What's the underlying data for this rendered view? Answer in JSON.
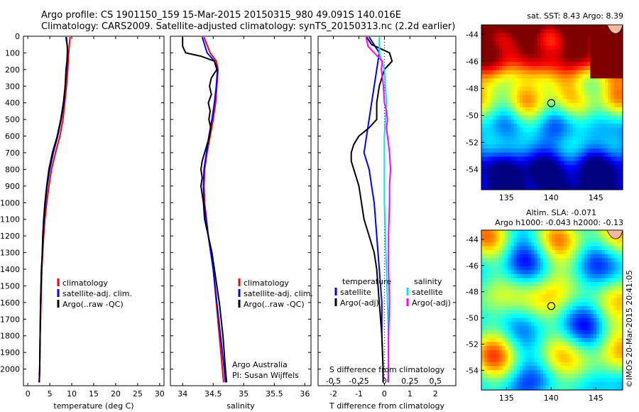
{
  "header": {
    "line1": "Argo profile: CS 1901150_159 15-Mar-2015 20150315_980 49.091S 140.016E",
    "line2": "Climatology: CARS2009. Satellite-adjusted climatology: synTS_20150313.nc (2.2d earlier)"
  },
  "credit": "©IMOS 20-Mar-2015 20:41:05",
  "colors": {
    "climatology": "#ff0000",
    "satellite": "#0000ff",
    "argo": "#000000",
    "sal_satellite": "#00e5ee",
    "sal_argo": "#ff00ff"
  },
  "chart_data": [
    {
      "type": "line",
      "panel": "temperature",
      "xlabel": "temperature (deg C)",
      "ylabel": "",
      "xlim": [
        -1,
        31
      ],
      "ylim": [
        2100,
        0
      ],
      "xticks": [
        "0",
        "5",
        "10",
        "15",
        "20",
        "25",
        "30"
      ],
      "xtick_values": [
        0,
        5,
        10,
        15,
        20,
        25,
        30
      ],
      "yticks": [
        "0",
        "100",
        "200",
        "300",
        "400",
        "500",
        "600",
        "700",
        "800",
        "900",
        "1000",
        "1100",
        "1200",
        "1300",
        "1400",
        "1500",
        "1600",
        "1700",
        "1800",
        "1900",
        "2000"
      ],
      "ytick_values": [
        0,
        100,
        200,
        300,
        400,
        500,
        600,
        700,
        800,
        900,
        1000,
        1100,
        1200,
        1300,
        1400,
        1500,
        1600,
        1700,
        1800,
        1900,
        2000
      ],
      "legend_position": "bottom-center",
      "legend": [
        "climatology",
        "satellite-adj. clim.",
        "Argo(..raw -QC)"
      ],
      "series": [
        {
          "name": "climatology",
          "y": [
            5,
            100,
            200,
            300,
            400,
            500,
            600,
            700,
            800,
            900,
            1000,
            1100,
            1200,
            1300,
            1400,
            1600,
            1800,
            2000,
            2080
          ],
          "x": [
            9.6,
            9.3,
            9.1,
            8.8,
            8.4,
            8.0,
            7.3,
            6.3,
            5.4,
            4.8,
            4.3,
            3.9,
            3.6,
            3.4,
            3.2,
            3.0,
            2.8,
            2.7,
            2.6
          ]
        },
        {
          "name": "satellite-adj. clim.",
          "y": [
            5,
            100,
            200,
            300,
            400,
            500,
            600,
            700,
            800,
            900,
            1000,
            1100,
            1200,
            1300,
            1400,
            1600,
            1800,
            2000,
            2080
          ],
          "x": [
            8.8,
            9.1,
            8.8,
            8.5,
            8.2,
            7.6,
            6.8,
            5.8,
            5.0,
            4.4,
            4.0,
            3.7,
            3.5,
            3.3,
            3.1,
            2.9,
            2.8,
            2.7,
            2.6
          ]
        },
        {
          "name": "Argo(..raw -QC)",
          "y": [
            5,
            30,
            60,
            100,
            150,
            200,
            300,
            400,
            500,
            600,
            700,
            800,
            900,
            1000,
            1100,
            1200,
            1300,
            1400,
            1600,
            1800,
            2000,
            2080
          ],
          "x": [
            8.7,
            8.8,
            9.0,
            9.0,
            8.9,
            8.7,
            8.5,
            8.1,
            7.5,
            6.7,
            5.6,
            4.8,
            4.3,
            3.9,
            3.6,
            3.4,
            3.3,
            3.1,
            2.9,
            2.8,
            2.7,
            2.6
          ]
        }
      ]
    },
    {
      "type": "line",
      "panel": "salinity",
      "xlabel": "salinity",
      "xlim": [
        33.8,
        36.1
      ],
      "ylim": [
        2100,
        0
      ],
      "xticks": [
        "34",
        "34.5",
        "35",
        "35.5",
        "36"
      ],
      "xtick_values": [
        34,
        34.5,
        35,
        35.5,
        36
      ],
      "legend_position": "bottom-right",
      "legend": [
        "climatology",
        "satellite-adj. clim.",
        "Argo(..raw -QC)"
      ],
      "annotation": [
        "Argo Australia",
        "PI: Susan Wijffels"
      ],
      "series": [
        {
          "name": "climatology",
          "y": [
            5,
            100,
            150,
            200,
            300,
            400,
            500,
            600,
            700,
            800,
            900,
            1000,
            1200,
            1400,
            1600,
            1800,
            2000,
            2080
          ],
          "x": [
            34.35,
            34.45,
            34.55,
            34.58,
            34.56,
            34.54,
            34.5,
            34.45,
            34.4,
            34.36,
            34.35,
            34.36,
            34.42,
            34.5,
            34.55,
            34.6,
            34.65,
            34.67
          ]
        },
        {
          "name": "satellite-adj. clim.",
          "y": [
            5,
            100,
            150,
            200,
            300,
            400,
            500,
            600,
            700,
            800,
            900,
            1000,
            1200,
            1400,
            1600,
            1800,
            2000,
            2080
          ],
          "x": [
            34.32,
            34.4,
            34.52,
            34.57,
            34.55,
            34.52,
            34.48,
            34.43,
            34.39,
            34.35,
            34.34,
            34.35,
            34.42,
            34.5,
            34.56,
            34.62,
            34.68,
            34.7
          ]
        },
        {
          "name": "Argo(..raw -QC)",
          "y": [
            5,
            60,
            100,
            120,
            150,
            200,
            250,
            300,
            350,
            400,
            450,
            500,
            550,
            600,
            650,
            700,
            750,
            800,
            850,
            900,
            1000,
            1100,
            1200,
            1300,
            1400,
            1500,
            1600,
            1700,
            1800,
            1900,
            2000,
            2080
          ],
          "x": [
            34.0,
            34.0,
            34.05,
            34.3,
            34.52,
            34.56,
            34.47,
            34.44,
            34.47,
            34.42,
            34.45,
            34.43,
            34.46,
            34.44,
            34.4,
            34.36,
            34.32,
            34.3,
            34.32,
            34.3,
            34.34,
            34.36,
            34.42,
            34.48,
            34.52,
            34.56,
            34.6,
            34.63,
            34.66,
            34.68,
            34.7,
            34.72
          ]
        }
      ]
    },
    {
      "type": "line",
      "panel": "difference",
      "xlabel": "T difference from climatology",
      "xlabel_top": "S difference from climatology",
      "xlim": [
        -2.6,
        2.8
      ],
      "ylim": [
        2100,
        0
      ],
      "xticks": [
        "-2",
        "-1",
        "0",
        "1",
        "2"
      ],
      "xtick_values": [
        -2,
        -1,
        0,
        1,
        2
      ],
      "sticks": [
        "-0.5",
        "-0.25",
        "0",
        "0.25",
        "0.5"
      ],
      "stick_values": [
        -0.5,
        -0.25,
        0,
        0.25,
        0.5
      ],
      "legend_position": "bottom-center",
      "legend_headers": [
        "temperature",
        "salinity"
      ],
      "legend": [
        "satellite",
        "Argo(-adj)",
        "satellite",
        "Argo(-adj)"
      ],
      "series": [
        {
          "name": "temperature satellite",
          "y": [
            5,
            100,
            200,
            400,
            600,
            700,
            800,
            900,
            1000,
            1200,
            1400,
            1600,
            1800,
            2000,
            2080
          ],
          "x": [
            -0.6,
            -0.2,
            -0.3,
            -0.5,
            -0.7,
            -0.8,
            -0.6,
            -0.5,
            -0.4,
            -0.3,
            -0.2,
            -0.1,
            -0.1,
            -0.05,
            -0.05
          ]
        },
        {
          "name": "temperature Argo(-adj)",
          "y": [
            5,
            50,
            100,
            150,
            200,
            300,
            400,
            500,
            550,
            600,
            650,
            700,
            750,
            800,
            850,
            900,
            1000,
            1100,
            1200,
            1300,
            1400,
            1600,
            1800,
            2000,
            2080
          ],
          "x": [
            -0.7,
            -0.5,
            0.2,
            0.3,
            0.0,
            -0.2,
            -0.3,
            -0.3,
            -0.6,
            -1.0,
            -1.2,
            -1.3,
            -1.3,
            -1.2,
            -1.1,
            -1.0,
            -0.9,
            -0.8,
            -0.6,
            -0.4,
            -0.3,
            -0.2,
            -0.1,
            -0.05,
            -0.05
          ]
        },
        {
          "name": "salinity satellite",
          "y": [
            5,
            100,
            200,
            300,
            400,
            500,
            600,
            800,
            1000,
            1200,
            1400,
            1600,
            1800,
            2000,
            2080
          ],
          "x": [
            -0.05,
            -0.05,
            0.0,
            0.01,
            0.02,
            0.01,
            0.0,
            0.0,
            0.0,
            0.01,
            0.02,
            0.03,
            0.04,
            0.04,
            0.03
          ]
        },
        {
          "name": "salinity Argo(-adj)",
          "y": [
            5,
            60,
            100,
            150,
            200,
            300,
            400,
            450,
            500,
            550,
            600,
            650,
            700,
            800,
            900,
            1000,
            1200,
            1400,
            1600,
            1800,
            2000,
            2080
          ],
          "x": [
            -0.18,
            -0.16,
            -0.1,
            -0.02,
            -0.03,
            -0.01,
            0.0,
            0.02,
            0.03,
            0.02,
            0.03,
            0.04,
            0.05,
            0.06,
            0.05,
            0.05,
            0.04,
            0.04,
            0.05,
            0.04,
            0.04,
            0.04
          ]
        }
      ]
    },
    {
      "type": "heatmap",
      "panel": "sst-map",
      "title": "sat. SST: 8.43  Argo: 8.39",
      "xlim": [
        132.2,
        148
      ],
      "ylim": [
        -55.5,
        -43.3
      ],
      "xticks": [
        "135",
        "140",
        "145"
      ],
      "xtick_values": [
        135,
        140,
        145
      ],
      "yticks": [
        "-44",
        "-46",
        "-48",
        "-50",
        "-52",
        "-54"
      ],
      "ytick_values": [
        -44,
        -46,
        -48,
        -50,
        -52,
        -54
      ],
      "marker": {
        "lon": 140.016,
        "lat": -49.091
      }
    },
    {
      "type": "heatmap",
      "panel": "sla-map",
      "title": "Altim. SLA: -0.071",
      "subtitle": "Argo h1000: -0.043  h2000: -0.13",
      "xlim": [
        132.2,
        148
      ],
      "ylim": [
        -55.5,
        -43.3
      ],
      "xticks": [
        "135",
        "140",
        "145"
      ],
      "xtick_values": [
        135,
        140,
        145
      ],
      "yticks": [
        "-44",
        "-46",
        "-48",
        "-50",
        "-52",
        "-54"
      ],
      "ytick_values": [
        -44,
        -46,
        -48,
        -50,
        -52,
        -54
      ],
      "marker": {
        "lon": 140.016,
        "lat": -49.091
      }
    }
  ]
}
